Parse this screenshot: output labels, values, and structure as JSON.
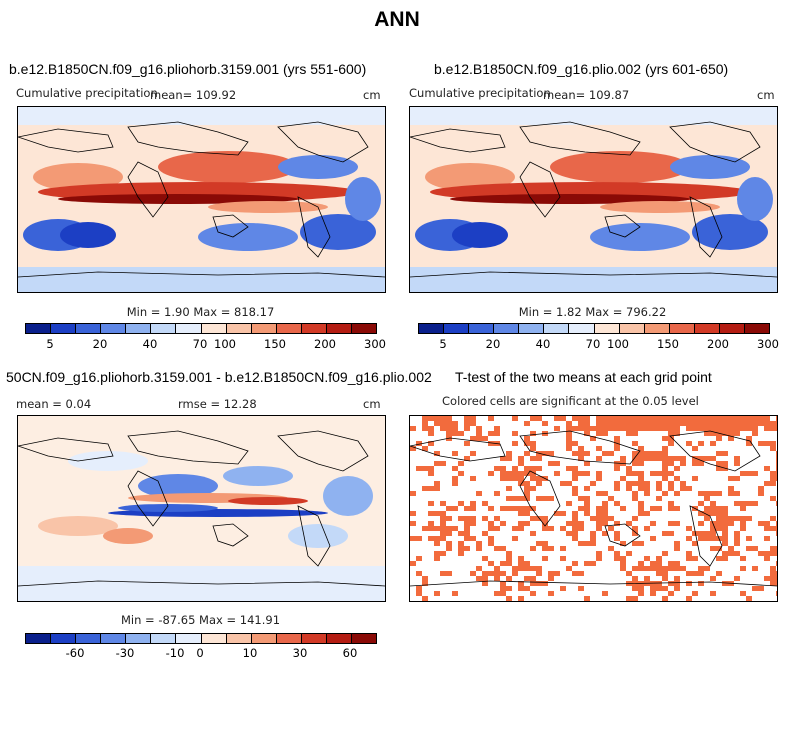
{
  "title": "ANN",
  "panels": {
    "p1": {
      "title": "b.e12.B1850CN.f09_g16.pliohorb.3159.001 (yrs 551-600)",
      "var_label": "Cumulative precipitation",
      "mean_label": "mean=  109.92",
      "units": "cm",
      "minmax": "Min =   1.90 Max = 818.17"
    },
    "p2": {
      "title": "b.e12.B1850CN.f09_g16.plio.002 (yrs 601-650)",
      "var_label": "Cumulative precipitation",
      "mean_label": "mean=  109.87",
      "units": "cm",
      "minmax": "Min =   1.82 Max = 796.22"
    },
    "p3": {
      "title": "50CN.f09_g16.pliohorb.3159.001 - b.e12.B1850CN.f09_g16.plio.002",
      "mean_label": "mean =    0.04",
      "rmse_label": "rmse =   12.28",
      "units": "cm",
      "minmax": "Min = -87.65 Max = 141.91"
    },
    "p4": {
      "title": "T-test of the two means at each grid point",
      "subtitle": "Colored cells are significant at the 0.05 level"
    }
  },
  "colorbar_abs": {
    "colors": [
      "#0a1f8c",
      "#1c3fc4",
      "#3a63d8",
      "#5f87e6",
      "#8fb2f0",
      "#c3d9f8",
      "#e5eefc",
      "#fde6d6",
      "#f9c4a8",
      "#f39a75",
      "#e8674a",
      "#d23a26",
      "#b41c12",
      "#8a0a06"
    ],
    "ticks": [
      "5",
      "20",
      "40",
      "70",
      "100",
      "150",
      "200",
      "300"
    ]
  },
  "colorbar_diff": {
    "colors": [
      "#0a1f8c",
      "#1c3fc4",
      "#3a63d8",
      "#5f87e6",
      "#8fb2f0",
      "#c3d9f8",
      "#e5eefc",
      "#fde6d6",
      "#f9c4a8",
      "#f39a75",
      "#e8674a",
      "#d23a26",
      "#b41c12",
      "#8a0a06"
    ],
    "ticks": [
      "-60",
      "-30",
      "-10",
      "0",
      "10",
      "30",
      "60"
    ]
  },
  "significance_color": "#f26b3d"
}
